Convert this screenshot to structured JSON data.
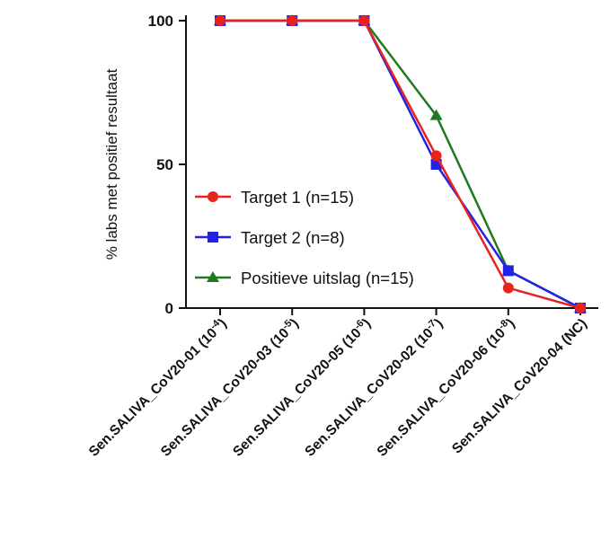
{
  "chart_data": {
    "type": "line",
    "ylabel": "% labs met positief resultaat",
    "xlabel": "",
    "ylim": [
      0,
      100
    ],
    "yticks": [
      0,
      50,
      100
    ],
    "categories": [
      {
        "base": "Sen.SALIVA_CoV20-01 (10",
        "exp": "-4",
        "tail": ")"
      },
      {
        "base": "Sen.SALIVA_CoV20-03 (10",
        "exp": "-5",
        "tail": ")"
      },
      {
        "base": "Sen.SALIVA_CoV20-05 (10",
        "exp": "-6",
        "tail": ")"
      },
      {
        "base": "Sen.SALIVA_CoV20-02 (10",
        "exp": "-7",
        "tail": ")"
      },
      {
        "base": "Sen.SALIVA_CoV20-06 (10",
        "exp": "-8",
        "tail": ")"
      },
      {
        "base": "Sen.SALIVA_CoV20-04 (NC)",
        "exp": "",
        "tail": ""
      }
    ],
    "series": [
      {
        "name": "Target 1 (n=15)",
        "color": "#e8231f",
        "marker": "circle",
        "values": [
          100,
          100,
          100,
          53,
          7,
          0
        ]
      },
      {
        "name": "Target 2 (n=8)",
        "color": "#2323e6",
        "marker": "square",
        "values": [
          100,
          100,
          100,
          50,
          13,
          0
        ]
      },
      {
        "name": "Positieve uitslag (n=15)",
        "color": "#1f7a1f",
        "marker": "triangle",
        "values": [
          100,
          100,
          100,
          67,
          13,
          0
        ]
      }
    ],
    "legend_position": "center-left",
    "grid": false
  }
}
